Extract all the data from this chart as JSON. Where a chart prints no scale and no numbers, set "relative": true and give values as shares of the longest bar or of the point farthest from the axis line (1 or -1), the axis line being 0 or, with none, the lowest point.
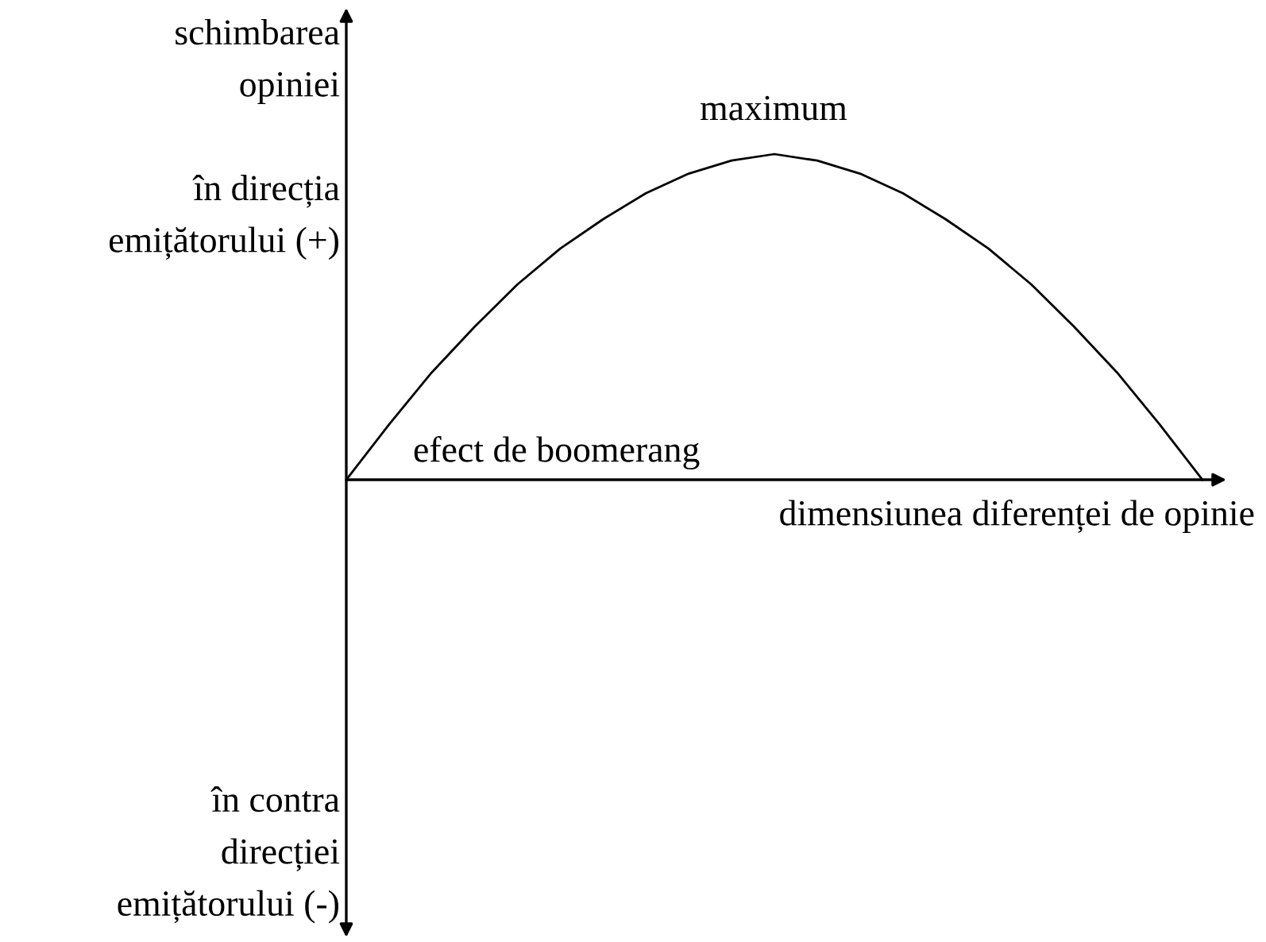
{
  "chart_data": {
    "type": "line",
    "relative": true,
    "color": "#000000",
    "categories": [
      null,
      null,
      null,
      null,
      null,
      null,
      null,
      null,
      null,
      null,
      null,
      null,
      null,
      null,
      null,
      null,
      null,
      null,
      null,
      null,
      null
    ],
    "values": [
      0,
      0.17,
      0.33,
      0.47,
      0.6,
      0.71,
      0.8,
      0.88,
      0.94,
      0.98,
      1,
      0.98,
      0.94,
      0.88,
      0.8,
      0.71,
      0.6,
      0.47,
      0.33,
      0.17,
      0
    ],
    "ylabel": "schimbarea\nopiniei",
    "xlabel": "dimensiunea diferenței de opinie",
    "annotations": [
      "în direcția\nemițătorului (+)",
      "în contra\ndirecției\nemițătorului (-)",
      "maximum",
      "efect de boomerang"
    ],
    "marker": "none",
    "line_style": "solid",
    "legend": false
  }
}
